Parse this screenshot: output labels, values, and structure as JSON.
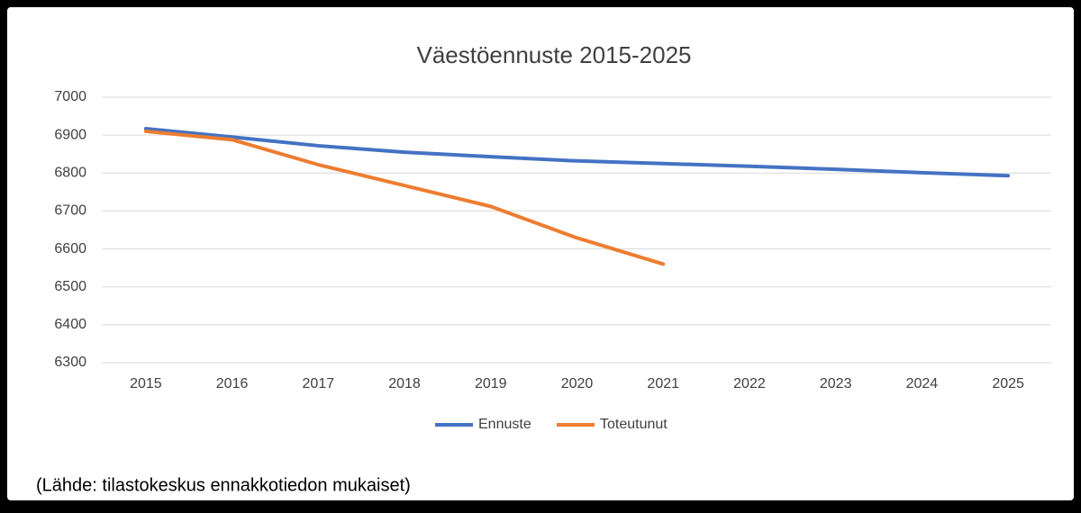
{
  "chart_data": {
    "type": "line",
    "title": "Väestöennuste 2015-2025",
    "categories": [
      "2015",
      "2016",
      "2017",
      "2018",
      "2019",
      "2020",
      "2021",
      "2022",
      "2023",
      "2024",
      "2025"
    ],
    "series": [
      {
        "name": "Ennuste",
        "color": "#4472c4",
        "values": [
          6917,
          6895,
          6872,
          6855,
          6843,
          6832,
          6825,
          6818,
          6810,
          6801,
          6793
        ]
      },
      {
        "name": "Toteutunut",
        "color": "#ed7d31",
        "values": [
          6910,
          6888,
          6822,
          6767,
          6712,
          6629,
          6560,
          null,
          null,
          null,
          null
        ]
      }
    ],
    "ylim": [
      6300,
      7000
    ],
    "yticks": [
      6300,
      6400,
      6500,
      6600,
      6700,
      6800,
      6900,
      7000
    ],
    "grid": true,
    "legend": "bottom",
    "note": "(Lähde: tilastokeskus ennakkotiedon mukaiset)"
  }
}
